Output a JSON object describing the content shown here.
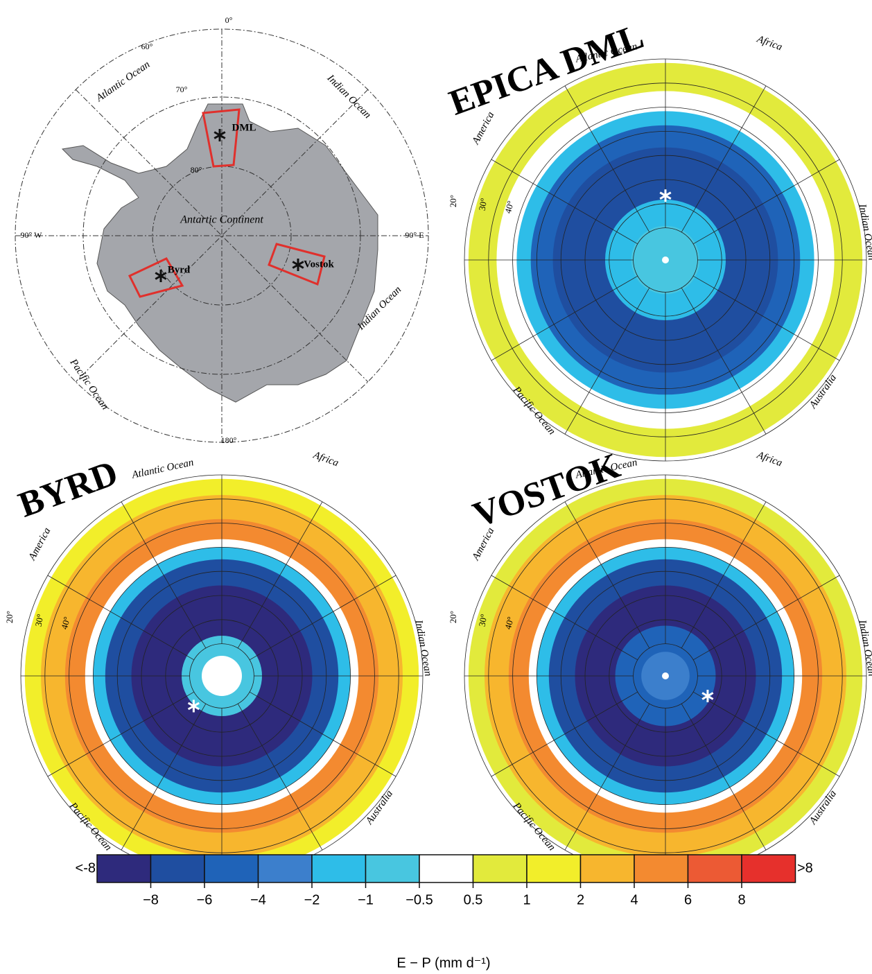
{
  "overview_map": {
    "grid_labels": [
      "0°",
      "60°",
      "70°",
      "80°",
      "90° W",
      "90° E",
      "180°"
    ],
    "ocean_labels": [
      "Atlantic Ocean",
      "Indian Ocean",
      "Indian Ocean",
      "Pacific Ocean"
    ],
    "continent_label": "Antartic Continent",
    "sites": [
      "DML",
      "Byrd",
      "Vostok"
    ]
  },
  "panels": [
    {
      "title": "EPICA DML",
      "labels": [
        "Atlantic Ocean",
        "Africa",
        "America",
        "Indian Ocean",
        "Pacific Ocean",
        "Australia",
        "20°",
        "30°",
        "40°"
      ]
    },
    {
      "title": "BYRD",
      "labels": [
        "Atlantic Ocean",
        "Africa",
        "America",
        "Indian Ocean",
        "Pacific Ocean",
        "Australia",
        "20°",
        "30°",
        "40°"
      ]
    },
    {
      "title": "VOSTOK",
      "labels": [
        "Atlantic Ocean",
        "Africa",
        "America",
        "Indian Ocean",
        "Pacific Ocean",
        "Australia",
        "20°",
        "30°",
        "40°"
      ]
    }
  ],
  "colorbar": {
    "colors": [
      "#2e2a7c",
      "#1f4ea0",
      "#1f63b8",
      "#3c7fcc",
      "#2ebde8",
      "#48c6e0",
      "#ffffff",
      "#e2ea3c",
      "#f2ee2a",
      "#f7b62e",
      "#f38a30",
      "#ec5a34",
      "#e6302c"
    ],
    "ticks": [
      {
        "value": -8,
        "label": "−8"
      },
      {
        "value": -6,
        "label": "−6"
      },
      {
        "value": -4,
        "label": "−4"
      },
      {
        "value": -2,
        "label": "−2"
      },
      {
        "value": -1,
        "label": "−1"
      },
      {
        "value": -0.5,
        "label": "−0.5"
      },
      0.5,
      1,
      2,
      4,
      6,
      8
    ],
    "low_label": "<-8",
    "high_label": ">8",
    "axis_label": "E − P (mm d⁻¹)"
  }
}
